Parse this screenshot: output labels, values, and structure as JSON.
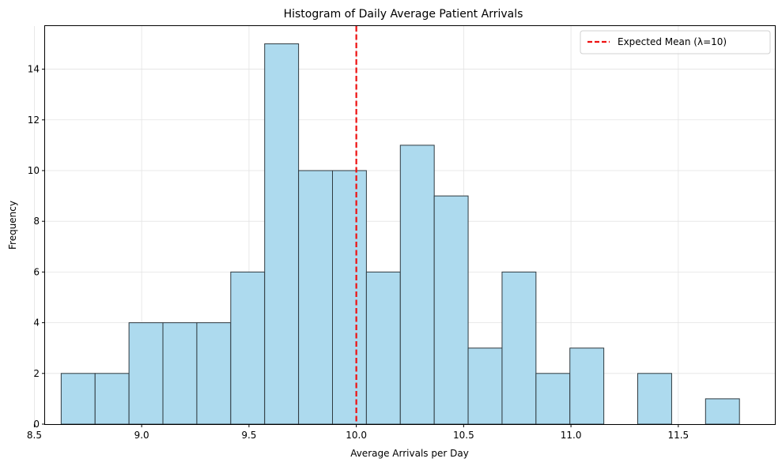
{
  "chart_data": {
    "type": "bar",
    "title": "Histogram of Daily Average Patient Arrivals",
    "xlabel": "Average Arrivals per Day",
    "ylabel": "Frequency",
    "xlim": [
      8.55,
      11.95
    ],
    "ylim": [
      0,
      15.7
    ],
    "xticks": [
      8.5,
      9.0,
      9.5,
      10.0,
      10.5,
      11.0,
      11.5
    ],
    "xtick_labels": [
      "8.5",
      "9.0",
      "9.5",
      "10.0",
      "10.5",
      "11.0",
      "11.5"
    ],
    "yticks": [
      0,
      2,
      4,
      6,
      8,
      10,
      12,
      14
    ],
    "ytick_labels": [
      "0",
      "2",
      "4",
      "6",
      "8",
      "10",
      "12",
      "14"
    ],
    "grid": true,
    "bins": {
      "start": 8.625,
      "width": 0.158,
      "counts": [
        2,
        2,
        4,
        4,
        4,
        6,
        15,
        10,
        10,
        6,
        11,
        9,
        3,
        6,
        2,
        3,
        0,
        2,
        0,
        1
      ]
    },
    "bar_fill": "#ADDAEE",
    "bar_edge": "#2F3A40",
    "reference_line": {
      "x": 10.0,
      "color": "#EE1111",
      "label": "Expected Mean (λ=10)"
    },
    "legend": {
      "position": "top-right",
      "entries": [
        "Expected Mean (λ=10)"
      ]
    }
  }
}
